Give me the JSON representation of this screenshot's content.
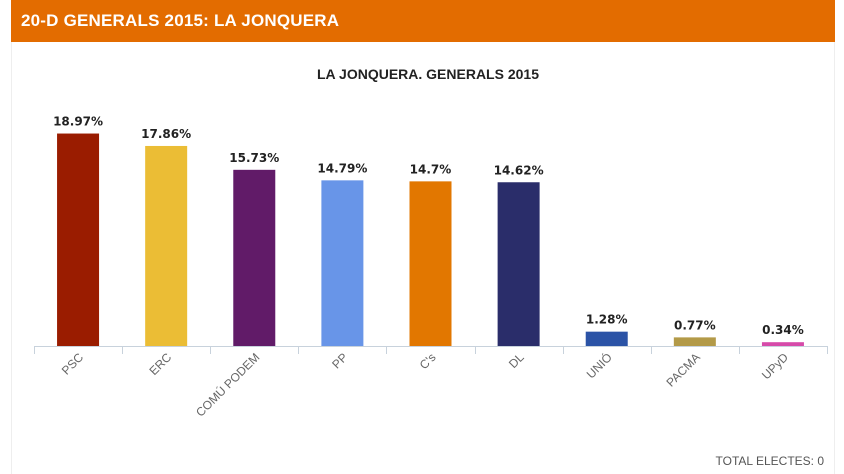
{
  "header": {
    "title": "20-D GENERALS 2015: LA JONQUERA"
  },
  "footer": {
    "total_label": "TOTAL ELECTES: 0"
  },
  "colors": {
    "header_bg": "#e36c00"
  },
  "chart_data": {
    "type": "bar",
    "title": "LA JONQUERA. GENERALS 2015",
    "xlabel": "",
    "ylabel": "",
    "ylim": [
      0,
      20
    ],
    "grid": false,
    "legend": "none",
    "categories": [
      "PSC",
      "ERC",
      "COMÚ PODEM",
      "PP",
      "C's",
      "DL",
      "UNIÓ",
      "PACMA",
      "UPyD"
    ],
    "values": [
      18.97,
      17.86,
      15.73,
      14.79,
      14.7,
      14.62,
      1.28,
      0.77,
      0.34
    ],
    "data_labels": [
      "18.97%",
      "17.86%",
      "15.73%",
      "14.79%",
      "14.7%",
      "14.62%",
      "1.28%",
      "0.77%",
      "0.34%"
    ],
    "colors": [
      "#9a1c00",
      "#ebbd35",
      "#611b68",
      "#6895e8",
      "#e27700",
      "#2a2d6a",
      "#2b53a6",
      "#b39a48",
      "#d64aa9"
    ]
  }
}
